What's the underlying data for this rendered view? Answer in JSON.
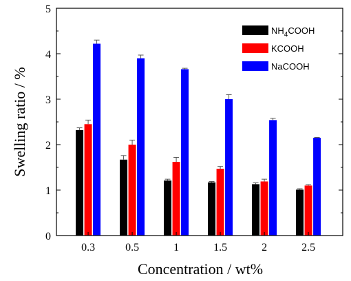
{
  "chart_data": {
    "type": "bar",
    "title": "",
    "xlabel": "Concentration / wt%",
    "ylabel": "Swelling ratio / %",
    "categories": [
      "0.3",
      "0.5",
      "1",
      "1.5",
      "2",
      "2.5"
    ],
    "ylim": [
      0,
      5
    ],
    "yticks": [
      "0",
      "1",
      "2",
      "3",
      "4",
      "5"
    ],
    "legend_position": "top-right",
    "grid": false,
    "series": [
      {
        "name": "NH4COOH",
        "name_main": "NH",
        "name_sub": "4",
        "name_tail": "COOH",
        "color": "#000000",
        "values": [
          2.32,
          1.67,
          1.21,
          1.17,
          1.13,
          1.01
        ],
        "errors": [
          0.05,
          0.09,
          0.03,
          0.02,
          0.03,
          0.02
        ]
      },
      {
        "name": "KCOOH",
        "color": "#ff0000",
        "values": [
          2.45,
          2.0,
          1.62,
          1.47,
          1.19,
          1.1
        ],
        "errors": [
          0.09,
          0.1,
          0.1,
          0.05,
          0.05,
          0.02
        ]
      },
      {
        "name": "NaCOOH",
        "color": "#0000ff",
        "values": [
          4.22,
          3.9,
          3.66,
          3.0,
          2.54,
          2.15
        ],
        "errors": [
          0.08,
          0.07,
          0.02,
          0.1,
          0.04,
          0.01
        ]
      }
    ]
  }
}
